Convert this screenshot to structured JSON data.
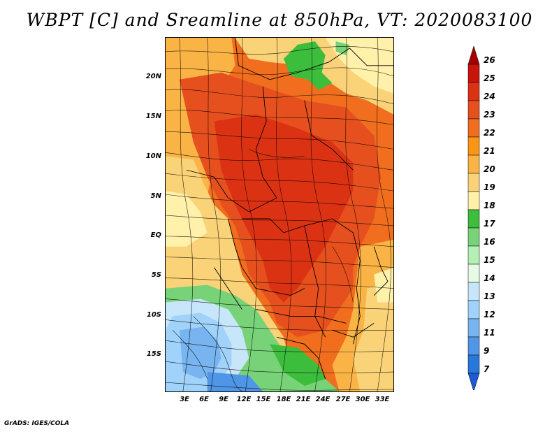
{
  "title": "WBPT [C] and Sreamline at 850hPa, VT: 2020083100",
  "credit": "GrADS: IGES/COLA",
  "map": {
    "lat_labels": [
      "20N",
      "15N",
      "10N",
      "5N",
      "EQ",
      "5S",
      "10S",
      "15S"
    ],
    "lon_labels": [
      "3E",
      "6E",
      "9E",
      "12E",
      "15E",
      "18E",
      "21E",
      "24E",
      "27E",
      "30E",
      "33E"
    ]
  },
  "colorbar": {
    "labels": [
      "26",
      "25",
      "24",
      "23",
      "22",
      "21",
      "20",
      "19",
      "18",
      "17",
      "16",
      "15",
      "14",
      "13",
      "12",
      "11",
      "9",
      "7"
    ],
    "colors": [
      "#a50000",
      "#c8140a",
      "#dc3214",
      "#e6501e",
      "#f06e1e",
      "#fa9614",
      "#fab446",
      "#fad278",
      "#fff0aa",
      "#3cbe3c",
      "#78d278",
      "#b4f0b4",
      "#e6fae6",
      "#c8e6fa",
      "#a0d2fa",
      "#78b4f0",
      "#5096e6",
      "#2878dc",
      "#1e5ad2"
    ]
  }
}
